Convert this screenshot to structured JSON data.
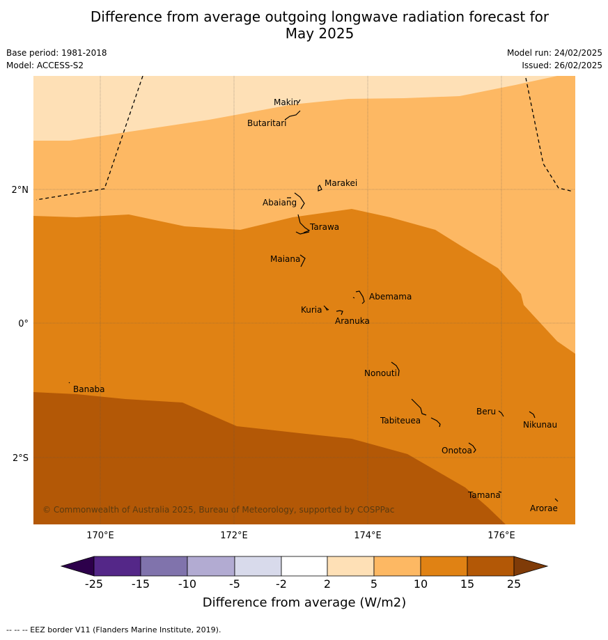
{
  "title_line1": "Difference from average outgoing longwave radiation forecast for",
  "title_line2": "May 2025",
  "base_period": "Base period: 1981-2018",
  "model": "Model: ACCESS-S2",
  "model_run": "Model run: 24/02/2025",
  "issued": "Issued: 26/02/2025",
  "lat_labels": [
    "2°N",
    "0°",
    "2°S"
  ],
  "lon_labels": [
    "170°E",
    "172°E",
    "174°E",
    "176°E"
  ],
  "places": [
    "Makin",
    "Butaritari",
    "Marakei",
    "Abaiang",
    "Tarawa",
    "Maiana",
    "Abemama",
    "Kuria",
    "Aranuka",
    "Nonouti",
    "Banaba",
    "Tabiteuea",
    "Beru",
    "Nikunau",
    "Onotoa",
    "Tamana",
    "Arorae"
  ],
  "copyright": "© Commonwealth of Australia 2025, Bureau of Meteorology, supported by COSPPac",
  "colorbar": {
    "ticks": [
      "-25",
      "-15",
      "-10",
      "-5",
      "-2",
      "2",
      "5",
      "10",
      "15",
      "25"
    ],
    "colors": [
      "#542788",
      "#8073ac",
      "#b2abd2",
      "#d8daeb",
      "#ffffff",
      "#fee0b6",
      "#fdb863",
      "#e08214",
      "#b35806"
    ],
    "under_color": "#2d004b",
    "over_color": "#7f3b08",
    "label": "Difference from average (W/m2)"
  },
  "footnote": "--  --  -- EEZ border V11 (Flanders Marine Institute, 2019)."
}
